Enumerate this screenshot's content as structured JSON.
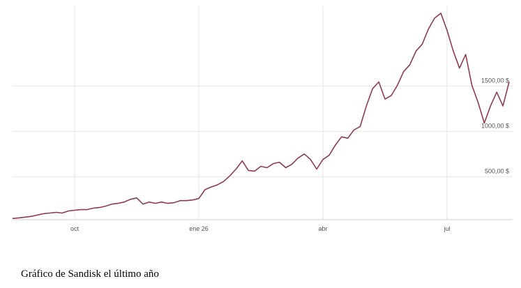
{
  "chart_data": {
    "type": "line",
    "caption": "Gráfico de Sandisk el último año",
    "categories": [
      null,
      null,
      null,
      null,
      null,
      null,
      null,
      null,
      null,
      null,
      "oct",
      null,
      null,
      null,
      null,
      null,
      null,
      null,
      null,
      null,
      null,
      null,
      null,
      null,
      null,
      null,
      null,
      null,
      null,
      null,
      "ene 26",
      null,
      null,
      null,
      null,
      null,
      null,
      null,
      null,
      null,
      null,
      null,
      null,
      null,
      null,
      null,
      null,
      null,
      null,
      null,
      "abr",
      null,
      null,
      null,
      null,
      null,
      null,
      null,
      null,
      null,
      null,
      null,
      null,
      null,
      null,
      null,
      null,
      null,
      null,
      null,
      "jul",
      null,
      null,
      null,
      null,
      null,
      null,
      null,
      null,
      null,
      null
    ],
    "values": [
      38,
      45,
      53,
      61,
      76,
      91,
      98,
      106,
      98,
      121,
      129,
      136,
      136,
      152,
      159,
      174,
      197,
      205,
      220,
      250,
      265,
      197,
      220,
      205,
      220,
      205,
      212,
      235,
      235,
      242,
      258,
      356,
      386,
      409,
      447,
      508,
      583,
      674,
      568,
      561,
      614,
      598,
      644,
      659,
      598,
      636,
      705,
      750,
      689,
      583,
      689,
      735,
      848,
      939,
      924,
      1015,
      1053,
      1280,
      1470,
      1545,
      1356,
      1394,
      1508,
      1659,
      1735,
      1886,
      1962,
      2129,
      2250,
      2303,
      2114,
      1886,
      1697,
      1848,
      1508,
      1318,
      1091,
      1280,
      1432,
      1280,
      1545
    ],
    "color": "#8e3b4c",
    "ylim": [
      25,
      2380
    ],
    "yticks": [
      {
        "value": 500,
        "label": "500,00 $"
      },
      {
        "value": 1000,
        "label": "1000,00 $"
      },
      {
        "value": 1500,
        "label": "1500,00 $"
      }
    ],
    "grid": true
  }
}
